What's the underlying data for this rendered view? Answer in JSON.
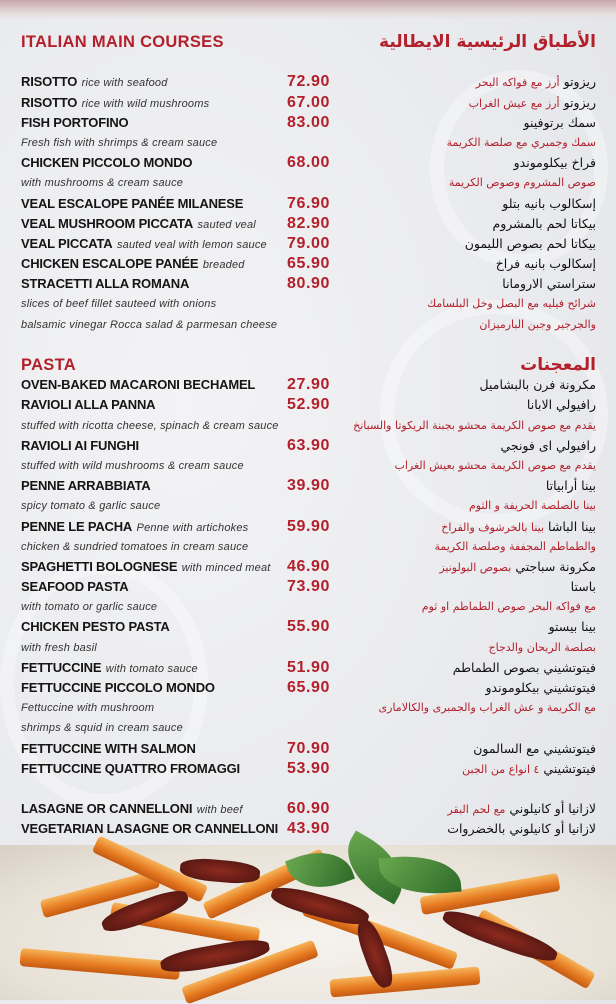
{
  "colors": {
    "accent": "#b3202c",
    "text": "#151515",
    "background": "#e9eaed"
  },
  "rows": [
    {
      "type": "title",
      "en": "ITALIAN MAIN COURSES",
      "ar": "الأطباق الرئيسية الايطالية"
    },
    {
      "type": "blank"
    },
    {
      "type": "item",
      "name": "RISOTTO",
      "desc": "rice with seafood",
      "price": "72.90",
      "ar_name": "ريزوتو",
      "ar_desc": "أرز مع فواكه البحر"
    },
    {
      "type": "item",
      "name": "RISOTTO",
      "desc": "rice with wild mushrooms",
      "price": "67.00",
      "ar_name": "ريزوتو",
      "ar_desc": "أرز مع عيش الغراب"
    },
    {
      "type": "item",
      "name": "FISH PORTOFINO",
      "desc": "",
      "price": "83.00",
      "ar_name": "سمك برتوفينو",
      "ar_desc": ""
    },
    {
      "type": "desc",
      "en": "Fresh fish with shrimps & cream sauce",
      "ar": "سمك وجمبري مع صلصة الكريمة"
    },
    {
      "type": "item",
      "name": "CHICKEN PICCOLO MONDO",
      "desc": "",
      "price": "68.00",
      "ar_name": "فراخ بيكلوموندو",
      "ar_desc": ""
    },
    {
      "type": "desc",
      "en": "with mushrooms & cream sauce",
      "ar": "صوص المشروم وصوص الكريمة"
    },
    {
      "type": "item",
      "name": "VEAL ESCALOPE PANÉE MILANESE",
      "desc": "",
      "price": "76.90",
      "ar_name": "إسكالوب بانيه بتلو",
      "ar_desc": ""
    },
    {
      "type": "item",
      "name": "VEAL MUSHROOM PICCATA",
      "desc": "sauted veal",
      "price": "82.90",
      "ar_name": "بيكاتا لحم بالمشروم",
      "ar_desc": ""
    },
    {
      "type": "item",
      "name": "VEAL PICCATA",
      "desc": "sauted veal with lemon sauce",
      "price": "79.00",
      "ar_name": "بيكاتا لحم بصوص الليمون",
      "ar_desc": ""
    },
    {
      "type": "item",
      "name": "CHICKEN ESCALOPE PANÉE",
      "desc": "breaded",
      "price": "65.90",
      "ar_name": "إسكالوب بانيه فراخ",
      "ar_desc": ""
    },
    {
      "type": "item",
      "name": "STRACETTI ALLA ROMANA",
      "desc": "",
      "price": "80.90",
      "ar_name": "ستراستي الارومانا",
      "ar_desc": ""
    },
    {
      "type": "desc",
      "en": "slices of beef fillet sauteed with onions",
      "ar": "شرائح فيليه مع البصل وخل البلسامك"
    },
    {
      "type": "desc",
      "en": "balsamic vinegar Rocca salad & parmesan cheese",
      "ar": "والجرجير وجبن البارميزان"
    },
    {
      "type": "blank"
    },
    {
      "type": "title",
      "en": "PASTA",
      "ar": "المعجنات"
    },
    {
      "type": "item",
      "name": "OVEN-BAKED MACARONI BECHAMEL",
      "desc": "",
      "price": "27.90",
      "ar_name": "مكرونة فرن بالبشاميل",
      "ar_desc": ""
    },
    {
      "type": "item",
      "name": "RAVIOLI ALLA PANNA",
      "desc": "",
      "price": "52.90",
      "ar_name": "رافيولي الابانا",
      "ar_desc": ""
    },
    {
      "type": "desc",
      "en": "stuffed with ricotta cheese, spinach & cream sauce",
      "ar": "يقدم مع صوص الكريمة محشو بجبنة الريكوتا والسبانخ"
    },
    {
      "type": "item",
      "name": "RAVIOLI AI FUNGHI",
      "desc": "",
      "price": "63.90",
      "ar_name": "رافيولي اى فونجي",
      "ar_desc": ""
    },
    {
      "type": "desc",
      "en": "stuffed with wild mushrooms & cream sauce",
      "ar": "يقدم مع صوص الكريمة محشو بعيش الغراب"
    },
    {
      "type": "item",
      "name": "PENNE ARRABBIATA",
      "desc": "",
      "price": "39.90",
      "ar_name": "بينا أرابياتا",
      "ar_desc": ""
    },
    {
      "type": "desc",
      "en": "spicy tomato & garlic sauce",
      "ar": "بينا بالصلصة الحريفة و الثوم"
    },
    {
      "type": "item",
      "name": "PENNE LE PACHA",
      "desc": "Penne with artichokes",
      "price": "59.90",
      "ar_name": "بينا الباشا",
      "ar_desc": "بينا بالخرشوف والفراخ"
    },
    {
      "type": "desc",
      "en": "chicken & sundried tomatoes in cream sauce",
      "ar": "والطماطم المجففة وصلصة الكريمة"
    },
    {
      "type": "item",
      "name": "SPAGHETTI BOLOGNESE",
      "desc": "with minced meat",
      "price": "46.90",
      "ar_name": "مكرونة سباجتي",
      "ar_desc": "بصوص البولونيز"
    },
    {
      "type": "item",
      "name": "SEAFOOD PASTA",
      "desc": "",
      "price": "73.90",
      "ar_name": "باستا",
      "ar_desc": ""
    },
    {
      "type": "desc",
      "en": "with tomato or garlic sauce",
      "ar": "مع فواكه البحر  صوص الطماطم او ثوم"
    },
    {
      "type": "item",
      "name": "CHICKEN PESTO PASTA",
      "desc": "",
      "price": "55.90",
      "ar_name": "بينا بيستو",
      "ar_desc": ""
    },
    {
      "type": "desc",
      "en": "with fresh basil",
      "ar": "بصلصة الريحان والدجاج"
    },
    {
      "type": "item",
      "name": "FETTUCCINE",
      "desc": "with tomato sauce",
      "price": "51.90",
      "ar_name": "فيتوتشيني بصوص الطماطم",
      "ar_desc": ""
    },
    {
      "type": "item",
      "name": "FETTUCCINE PICCOLO MONDO",
      "desc": "",
      "price": "65.90",
      "ar_name": "فيتوتشيني بيكلوموندو",
      "ar_desc": ""
    },
    {
      "type": "desc",
      "en": "Fettuccine with mushroom",
      "ar": "مع الكريمة و عش الغراب والجمبرى والكالامارى"
    },
    {
      "type": "desc",
      "en": " shrimps & squid in cream sauce",
      "ar": ""
    },
    {
      "type": "item",
      "name": "FETTUCCINE WITH SALMON",
      "desc": "",
      "price": "70.90",
      "ar_name": "فيتوتشيني مع السالمون",
      "ar_desc": ""
    },
    {
      "type": "item",
      "name": "FETTUCCINE QUATTRO FROMAGGI",
      "desc": "",
      "price": "53.90",
      "ar_name": "فيتوتشيني",
      "ar_desc": "٤ انواع من الجبن"
    },
    {
      "type": "blank"
    },
    {
      "type": "item",
      "name": "LASAGNE OR CANNELLONI",
      "desc": "with beef",
      "price": "60.90",
      "ar_name": "لازانيا أو كانيلوني",
      "ar_desc": "مع لحم البقر"
    },
    {
      "type": "item",
      "name": "VEGETARIAN LASAGNE OR CANNELLONI",
      "desc": "",
      "price": "43.90",
      "ar_name": "لازانيا أو كانيلوني بالخضروات",
      "ar_desc": ""
    }
  ]
}
